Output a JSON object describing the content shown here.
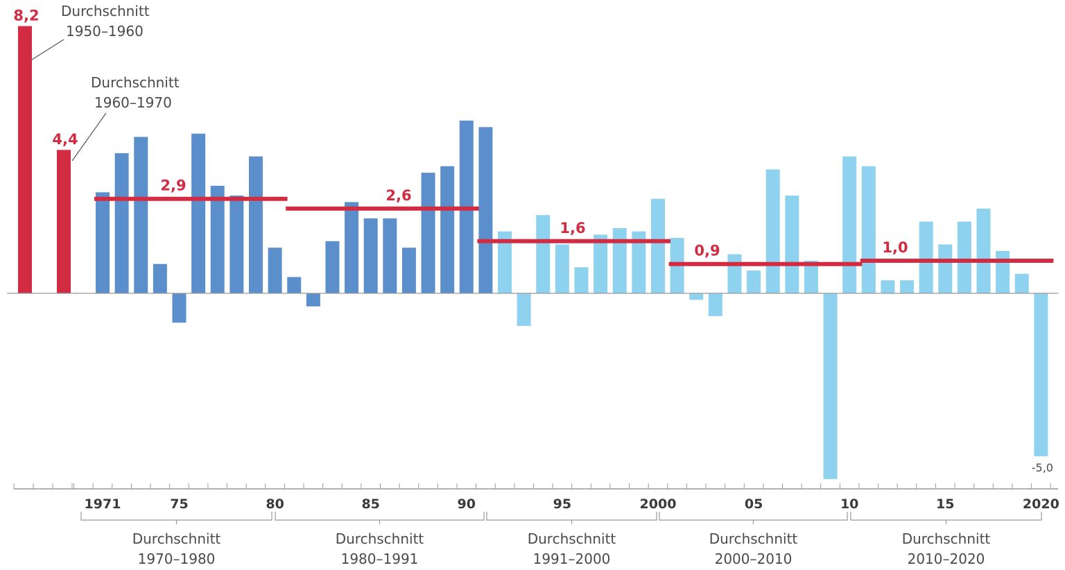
{
  "chart_data": {
    "type": "bar",
    "title": "",
    "xlabel": "",
    "ylabel": "",
    "ylim": [
      -5.9,
      8.4
    ],
    "grid": false,
    "legend": "none",
    "colors": {
      "decade_average": "#d22c43",
      "west_1971_1991": "#5b8fcb",
      "germany_1992_2020": "#8ed2ef",
      "axis": "#999999",
      "text": "#4a4a4a"
    },
    "historical_bars": [
      {
        "label": "Durchschnitt",
        "period": "1950–1960",
        "value": 8.2,
        "value_label": "8,2"
      },
      {
        "label": "Durchschnitt",
        "period": "1960–1970",
        "value": 4.4,
        "value_label": "4,4"
      }
    ],
    "years": [
      1971,
      1972,
      1973,
      1974,
      1975,
      1976,
      1977,
      1978,
      1979,
      1980,
      1981,
      1982,
      1983,
      1984,
      1985,
      1986,
      1987,
      1988,
      1989,
      1990,
      1991,
      1992,
      1993,
      1994,
      1995,
      1996,
      1997,
      1998,
      1999,
      2000,
      2001,
      2002,
      2003,
      2004,
      2005,
      2006,
      2007,
      2008,
      2009,
      2010,
      2011,
      2012,
      2013,
      2014,
      2015,
      2016,
      2017,
      2018,
      2019,
      2020
    ],
    "values": [
      3.1,
      4.3,
      4.8,
      0.9,
      -0.9,
      4.9,
      3.3,
      3.0,
      4.2,
      1.4,
      0.5,
      -0.4,
      1.6,
      2.8,
      2.3,
      2.3,
      1.4,
      3.7,
      3.9,
      5.3,
      5.1,
      1.9,
      -1.0,
      2.4,
      1.5,
      0.8,
      1.8,
      2.0,
      1.9,
      2.9,
      1.7,
      -0.2,
      -0.7,
      1.2,
      0.7,
      3.8,
      3.0,
      1.0,
      -5.7,
      4.2,
      3.9,
      0.4,
      0.4,
      2.2,
      1.5,
      2.2,
      2.6,
      1.3,
      0.6,
      -5.0
    ],
    "bar_value_labels": [
      {
        "year": 2020,
        "text": "-5,0"
      }
    ],
    "x_ticks": [
      {
        "year": 1971,
        "label": "1971"
      },
      {
        "year": 1975,
        "label": "75"
      },
      {
        "year": 1980,
        "label": "80"
      },
      {
        "year": 1985,
        "label": "85"
      },
      {
        "year": 1990,
        "label": "90"
      },
      {
        "year": 1995,
        "label": "95"
      },
      {
        "year": 2000,
        "label": "2000"
      },
      {
        "year": 2005,
        "label": "05"
      },
      {
        "year": 2010,
        "label": "10"
      },
      {
        "year": 2015,
        "label": "15"
      },
      {
        "year": 2020,
        "label": "2020"
      }
    ],
    "averages": [
      {
        "from": 1971,
        "to": 1980,
        "value": 2.9,
        "value_label": "2,9",
        "label": "Durchschnitt",
        "period": "1970–1980"
      },
      {
        "from": 1981,
        "to": 1990,
        "value": 2.6,
        "value_label": "2,6",
        "label": "Durchschnitt",
        "period": "1980–1991"
      },
      {
        "from": 1991,
        "to": 2000,
        "value": 1.6,
        "value_label": "1,6",
        "label": "Durchschnitt",
        "period": "1991–2000"
      },
      {
        "from": 2001,
        "to": 2010,
        "value": 0.9,
        "value_label": "0,9",
        "label": "Durchschnitt",
        "period": "2000–2010"
      },
      {
        "from": 2011,
        "to": 2020,
        "value": 1.0,
        "value_label": "1,0",
        "label": "Durchschnitt",
        "period": "2010–2020"
      }
    ]
  }
}
